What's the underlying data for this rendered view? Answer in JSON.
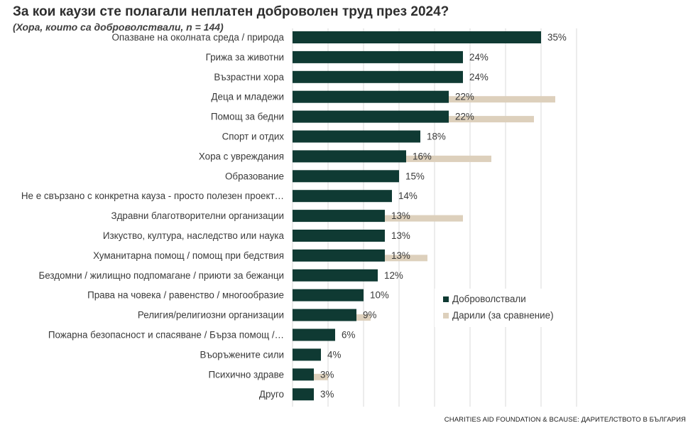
{
  "header": {
    "title": "За кои каузи сте полагали неплатен доброволен труд през 2024?",
    "subtitle": "(Хора, които са доброволствали, n = 144)"
  },
  "footer": {
    "source": "CHARITIES AID FOUNDATION & BCAUSE: ДАРИТЕЛСТВОТО В БЪЛГАРИЯ"
  },
  "colors": {
    "volunteers": "#0f3a33",
    "donors": "#ddd0bc",
    "grid": "#d9d9d9"
  },
  "chart_data": {
    "type": "bar",
    "orientation": "horizontal",
    "categories": [
      "Опазване на околната среда / природа",
      "Грижа за животни",
      "Възрастни хора",
      "Деца и младежи",
      "Помощ за бедни",
      "Спорт и отдих",
      "Хора с увреждания",
      "Образование",
      "Не е свързано с конкретна кауза - просто полезен проект…",
      "Здравни благотворителни организации",
      "Изкуство, култура, наследство или наука",
      "Хуманитарна помощ / помощ при бедствия",
      "Бездомни / жилищно подпомагане / приюти за бежанци",
      "Права на човека / равенство / многообразие",
      "Религия/религиозни организации",
      "Пожарна безопасност и спасяване / Бърза помощ /…",
      "Въоръжените сили",
      "Психично здраве",
      "Друго"
    ],
    "series": [
      {
        "name": "Доброволствали",
        "values": [
          35,
          24,
          24,
          22,
          22,
          18,
          16,
          15,
          14,
          13,
          13,
          13,
          12,
          10,
          9,
          6,
          4,
          3,
          3
        ],
        "labels": [
          "35%",
          "24%",
          "24%",
          "22%",
          "22%",
          "18%",
          "16%",
          "15%",
          "14%",
          "13%",
          "13%",
          "13%",
          "12%",
          "10%",
          "9%",
          "6%",
          "4%",
          "3%",
          "3%"
        ]
      },
      {
        "name": "Дарили (за сравнение)",
        "values": [
          9,
          16,
          23,
          37,
          34,
          5,
          28,
          10,
          0,
          24,
          6,
          19,
          9,
          5,
          11,
          4,
          2,
          5,
          3
        ]
      }
    ],
    "xlim": [
      0,
      40
    ],
    "grid": true,
    "legend": "bottom-right"
  }
}
